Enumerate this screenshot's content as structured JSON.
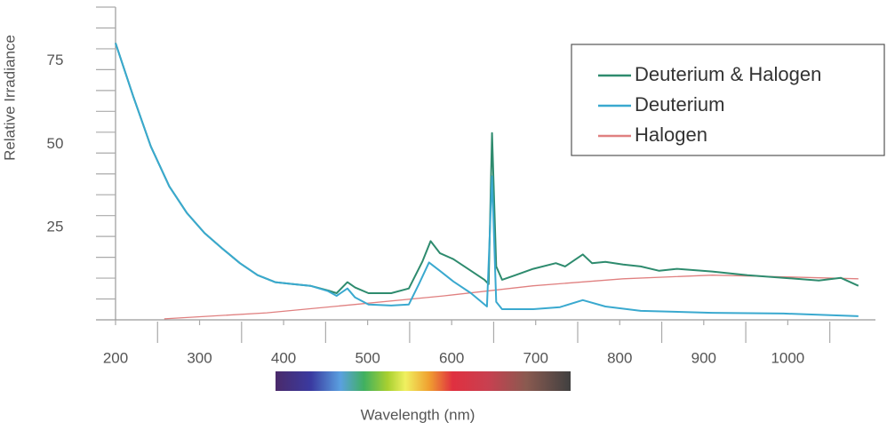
{
  "chart_data": {
    "type": "line",
    "y_label": "Relative Irradiance",
    "x_label": "Wavelength (nm)",
    "xlim": [
      200,
      1080
    ],
    "ylim": [
      0,
      93.75
    ],
    "xticks": [
      200,
      300,
      400,
      500,
      600,
      700,
      800,
      900,
      1000
    ],
    "xminorticks": [
      250,
      350,
      450,
      550,
      650,
      750,
      850,
      950,
      1050
    ],
    "yticks": [
      25,
      50,
      75
    ],
    "yminorticks": [
      6.25,
      12.5,
      18.75,
      31.25,
      37.5,
      43.75,
      56.25,
      62.5,
      68.75,
      81.25,
      87.5,
      93.75
    ],
    "legend": "upper right",
    "series": [
      {
        "name": "Deuterium & Halogen",
        "color": "#2e8b6e",
        "x": [
          200,
          221,
          242,
          264,
          285,
          306,
          327,
          348,
          369,
          390,
          411,
          432,
          453,
          463,
          476,
          485,
          501,
          528,
          549,
          565,
          575,
          586,
          602,
          623,
          639,
          644,
          648,
          653,
          660,
          676,
          697,
          724,
          735,
          756,
          767,
          783,
          804,
          825,
          847,
          868,
          910,
          952,
          995,
          1037,
          1063,
          1084
        ],
        "values": [
          83,
          67,
          52,
          40,
          32,
          26,
          21.4,
          17,
          13.4,
          11.3,
          10.7,
          10.2,
          8.8,
          8,
          11.3,
          9.7,
          8,
          8,
          9.4,
          17.4,
          23.6,
          20,
          18.2,
          14.7,
          12,
          10.7,
          56,
          16,
          12,
          13.4,
          15.3,
          17,
          16,
          19.6,
          17,
          17.4,
          16.6,
          16,
          14.7,
          15.3,
          14.5,
          13.4,
          12.6,
          11.8,
          12.6,
          10.2
        ]
      },
      {
        "name": "Deuterium",
        "color": "#3aa9cf",
        "x": [
          200,
          221,
          242,
          264,
          285,
          306,
          327,
          348,
          369,
          390,
          411,
          432,
          453,
          463,
          476,
          485,
          501,
          528,
          549,
          561,
          573,
          586,
          602,
          623,
          642,
          648,
          653,
          660,
          697,
          729,
          756,
          783,
          825,
          910,
          995,
          1084
        ],
        "values": [
          83,
          67,
          52,
          40,
          32,
          26,
          21.4,
          17,
          13.4,
          11.3,
          10.7,
          10.2,
          8.6,
          7.2,
          9.4,
          6.7,
          4.6,
          4.3,
          4.6,
          10.7,
          17.2,
          14.7,
          11.5,
          8,
          4,
          43,
          5.4,
          3.2,
          3.2,
          3.8,
          5.9,
          4,
          2.7,
          2.1,
          1.9,
          1.1
        ]
      },
      {
        "name": "Halogen",
        "color": "#e08080",
        "x": [
          258,
          380,
          485,
          591,
          697,
          804,
          910,
          995,
          1084
        ],
        "values": [
          0.3,
          2.1,
          4.6,
          7.2,
          10.2,
          12.3,
          13.4,
          12.9,
          12.3
        ]
      }
    ]
  }
}
